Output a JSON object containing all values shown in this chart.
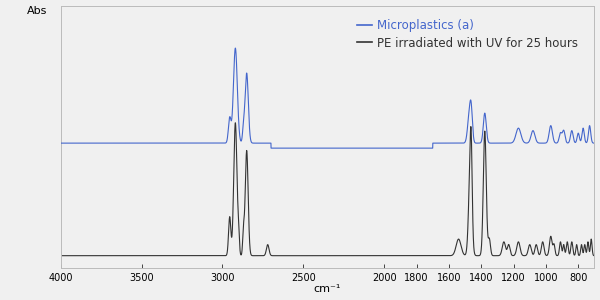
{
  "xlabel": "cm⁻¹",
  "ylabel": "Abs",
  "xlim": [
    4000,
    700
  ],
  "blue_color": "#4466cc",
  "black_color": "#333333",
  "background_color": "#f0f0f0",
  "legend_blue": "Microplastics (a)",
  "legend_black": "PE irradiated with UV for 25 hours",
  "xticks": [
    4000,
    3500,
    3000,
    2500,
    2000,
    1800,
    1600,
    1400,
    1200,
    1000,
    800
  ],
  "blue_baseline": 0.52,
  "black_baseline": 0.08
}
